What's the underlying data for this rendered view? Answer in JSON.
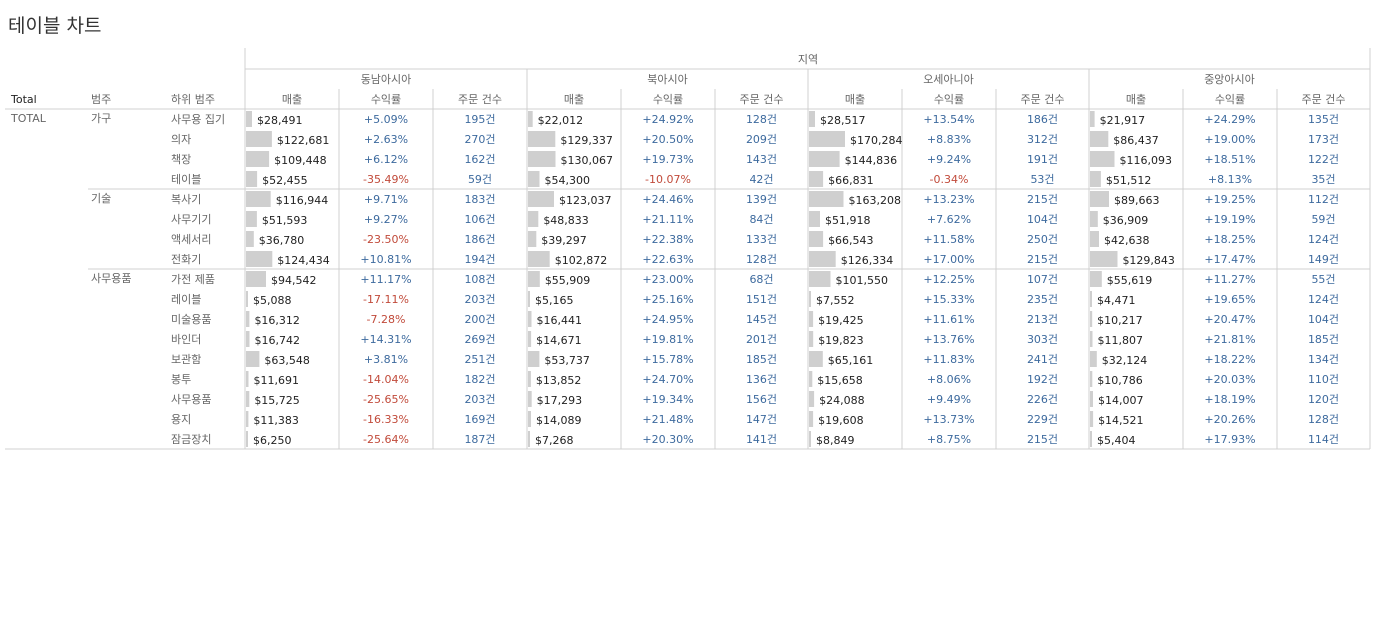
{
  "title": "테이블 차트",
  "column_header": "지역",
  "headers": {
    "total": "Total",
    "category": "범주",
    "subcategory": "하위 범주"
  },
  "measures": [
    "매출",
    "수익률",
    "주문 건수"
  ],
  "total_label": "TOTAL",
  "colors": {
    "bar": "#cfcfcf",
    "positive": "#3d6a9e",
    "negative": "#c14a3a",
    "grid": "#d0d0d0"
  },
  "chart_data": {
    "type": "table",
    "regions": [
      "동남아시아",
      "북아시아",
      "오세아니아",
      "중앙아시아"
    ],
    "bar_max": 170284,
    "groups": [
      {
        "category": "가구",
        "rows": [
          {
            "sub": "사무용 집기",
            "cells": [
              [
                "$28,491",
                "+5.09%",
                "195건"
              ],
              [
                "$22,012",
                "+24.92%",
                "128건"
              ],
              [
                "$28,517",
                "+13.54%",
                "186건"
              ],
              [
                "$21,917",
                "+24.29%",
                "135건"
              ]
            ]
          },
          {
            "sub": "의자",
            "cells": [
              [
                "$122,681",
                "+2.63%",
                "270건"
              ],
              [
                "$129,337",
                "+20.50%",
                "209건"
              ],
              [
                "$170,284",
                "+8.83%",
                "312건"
              ],
              [
                "$86,437",
                "+19.00%",
                "173건"
              ]
            ]
          },
          {
            "sub": "책장",
            "cells": [
              [
                "$109,448",
                "+6.12%",
                "162건"
              ],
              [
                "$130,067",
                "+19.73%",
                "143건"
              ],
              [
                "$144,836",
                "+9.24%",
                "191건"
              ],
              [
                "$116,093",
                "+18.51%",
                "122건"
              ]
            ]
          },
          {
            "sub": "테이블",
            "cells": [
              [
                "$52,455",
                "-35.49%",
                "59건"
              ],
              [
                "$54,300",
                "-10.07%",
                "42건"
              ],
              [
                "$66,831",
                "-0.34%",
                "53건"
              ],
              [
                "$51,512",
                "+8.13%",
                "35건"
              ]
            ]
          }
        ]
      },
      {
        "category": "기술",
        "rows": [
          {
            "sub": "복사기",
            "cells": [
              [
                "$116,944",
                "+9.71%",
                "183건"
              ],
              [
                "$123,037",
                "+24.46%",
                "139건"
              ],
              [
                "$163,208",
                "+13.23%",
                "215건"
              ],
              [
                "$89,663",
                "+19.25%",
                "112건"
              ]
            ]
          },
          {
            "sub": "사무기기",
            "cells": [
              [
                "$51,593",
                "+9.27%",
                "106건"
              ],
              [
                "$48,833",
                "+21.11%",
                "84건"
              ],
              [
                "$51,918",
                "+7.62%",
                "104건"
              ],
              [
                "$36,909",
                "+19.19%",
                "59건"
              ]
            ]
          },
          {
            "sub": "액세서리",
            "cells": [
              [
                "$36,780",
                "-23.50%",
                "186건"
              ],
              [
                "$39,297",
                "+22.38%",
                "133건"
              ],
              [
                "$66,543",
                "+11.58%",
                "250건"
              ],
              [
                "$42,638",
                "+18.25%",
                "124건"
              ]
            ]
          },
          {
            "sub": "전화기",
            "cells": [
              [
                "$124,434",
                "+10.81%",
                "194건"
              ],
              [
                "$102,872",
                "+22.63%",
                "128건"
              ],
              [
                "$126,334",
                "+17.00%",
                "215건"
              ],
              [
                "$129,843",
                "+17.47%",
                "149건"
              ]
            ]
          }
        ]
      },
      {
        "category": "사무용품",
        "rows": [
          {
            "sub": "가전 제품",
            "cells": [
              [
                "$94,542",
                "+11.17%",
                "108건"
              ],
              [
                "$55,909",
                "+23.00%",
                "68건"
              ],
              [
                "$101,550",
                "+12.25%",
                "107건"
              ],
              [
                "$55,619",
                "+11.27%",
                "55건"
              ]
            ]
          },
          {
            "sub": "레이블",
            "cells": [
              [
                "$5,088",
                "-17.11%",
                "203건"
              ],
              [
                "$5,165",
                "+25.16%",
                "151건"
              ],
              [
                "$7,552",
                "+15.33%",
                "235건"
              ],
              [
                "$4,471",
                "+19.65%",
                "124건"
              ]
            ]
          },
          {
            "sub": "미술용품",
            "cells": [
              [
                "$16,312",
                "-7.28%",
                "200건"
              ],
              [
                "$16,441",
                "+24.95%",
                "145건"
              ],
              [
                "$19,425",
                "+11.61%",
                "213건"
              ],
              [
                "$10,217",
                "+20.47%",
                "104건"
              ]
            ]
          },
          {
            "sub": "바인더",
            "cells": [
              [
                "$16,742",
                "+14.31%",
                "269건"
              ],
              [
                "$14,671",
                "+19.81%",
                "201건"
              ],
              [
                "$19,823",
                "+13.76%",
                "303건"
              ],
              [
                "$11,807",
                "+21.81%",
                "185건"
              ]
            ]
          },
          {
            "sub": "보관함",
            "cells": [
              [
                "$63,548",
                "+3.81%",
                "251건"
              ],
              [
                "$53,737",
                "+15.78%",
                "185건"
              ],
              [
                "$65,161",
                "+11.83%",
                "241건"
              ],
              [
                "$32,124",
                "+18.22%",
                "134건"
              ]
            ]
          },
          {
            "sub": "봉투",
            "cells": [
              [
                "$11,691",
                "-14.04%",
                "182건"
              ],
              [
                "$13,852",
                "+24.70%",
                "136건"
              ],
              [
                "$15,658",
                "+8.06%",
                "192건"
              ],
              [
                "$10,786",
                "+20.03%",
                "110건"
              ]
            ]
          },
          {
            "sub": "사무용품",
            "cells": [
              [
                "$15,725",
                "-25.65%",
                "203건"
              ],
              [
                "$17,293",
                "+19.34%",
                "156건"
              ],
              [
                "$24,088",
                "+9.49%",
                "226건"
              ],
              [
                "$14,007",
                "+18.19%",
                "120건"
              ]
            ]
          },
          {
            "sub": "용지",
            "cells": [
              [
                "$11,383",
                "-16.33%",
                "169건"
              ],
              [
                "$14,089",
                "+21.48%",
                "147건"
              ],
              [
                "$19,608",
                "+13.73%",
                "229건"
              ],
              [
                "$14,521",
                "+20.26%",
                "128건"
              ]
            ]
          },
          {
            "sub": "잠금장치",
            "cells": [
              [
                "$6,250",
                "-25.64%",
                "187건"
              ],
              [
                "$7,268",
                "+20.30%",
                "141건"
              ],
              [
                "$8,849",
                "+8.75%",
                "215건"
              ],
              [
                "$5,404",
                "+17.93%",
                "114건"
              ]
            ]
          }
        ]
      }
    ]
  }
}
